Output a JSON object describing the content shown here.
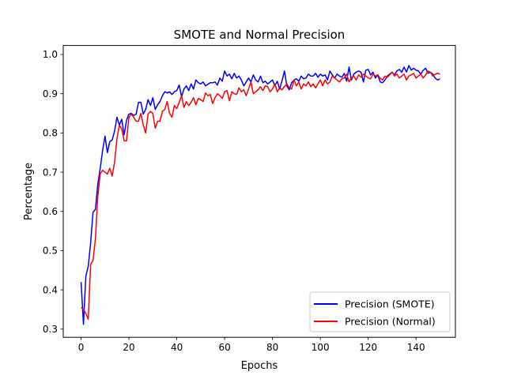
{
  "chart_data": {
    "type": "line",
    "title": "SMOTE and Normal Precision",
    "xlabel": "Epochs",
    "ylabel": "Percentage",
    "xlim": [
      -7.45,
      156.45
    ],
    "ylim": [
      0.279,
      1.023
    ],
    "xticks": [
      0,
      20,
      40,
      60,
      80,
      100,
      120,
      140
    ],
    "yticks": [
      0.3,
      0.4,
      0.5,
      0.6,
      0.7,
      0.8,
      0.9,
      1.0
    ],
    "ytick_labels": [
      "0.3",
      "0.4",
      "0.5",
      "0.6",
      "0.7",
      "0.8",
      "0.9",
      "1.0"
    ],
    "grid": false,
    "legend_position": "lower-right",
    "series": [
      {
        "name": "Precision (SMOTE)",
        "color": "#0000ff",
        "values": [
          0.42,
          0.312,
          0.435,
          0.46,
          0.52,
          0.598,
          0.605,
          0.67,
          0.71,
          0.755,
          0.792,
          0.75,
          0.778,
          0.782,
          0.805,
          0.84,
          0.82,
          0.835,
          0.795,
          0.832,
          0.848,
          0.85,
          0.845,
          0.848,
          0.878,
          0.878,
          0.848,
          0.86,
          0.885,
          0.87,
          0.89,
          0.86,
          0.872,
          0.88,
          0.895,
          0.905,
          0.902,
          0.905,
          0.898,
          0.905,
          0.908,
          0.922,
          0.892,
          0.912,
          0.92,
          0.908,
          0.925,
          0.912,
          0.935,
          0.928,
          0.925,
          0.93,
          0.92,
          0.924,
          0.928,
          0.928,
          0.93,
          0.922,
          0.94,
          0.932,
          0.958,
          0.945,
          0.95,
          0.938,
          0.952,
          0.94,
          0.945,
          0.935,
          0.92,
          0.93,
          0.94,
          0.93,
          0.948,
          0.935,
          0.93,
          0.945,
          0.928,
          0.932,
          0.925,
          0.93,
          0.935,
          0.92,
          0.932,
          0.912,
          0.933,
          0.958,
          0.92,
          0.91,
          0.928,
          0.935,
          0.938,
          0.932,
          0.945,
          0.938,
          0.94,
          0.95,
          0.945,
          0.945,
          0.952,
          0.942,
          0.95,
          0.945,
          0.948,
          0.935,
          0.958,
          0.948,
          0.94,
          0.95,
          0.945,
          0.942,
          0.952,
          0.932,
          0.968,
          0.935,
          0.95,
          0.955,
          0.958,
          0.955,
          0.93,
          0.96,
          0.962,
          0.948,
          0.955,
          0.94,
          0.948,
          0.93,
          0.928,
          0.935,
          0.945,
          0.95,
          0.955,
          0.948,
          0.958,
          0.962,
          0.955,
          0.968,
          0.955,
          0.972,
          0.96,
          0.965,
          0.96,
          0.958,
          0.95,
          0.96,
          0.965,
          0.952,
          0.955,
          0.95,
          0.94,
          0.935,
          0.938
        ]
      },
      {
        "name": "Precision (Normal)",
        "color": "#ff0000",
        "values": [
          0.355,
          0.35,
          0.34,
          0.325,
          0.465,
          0.475,
          0.53,
          0.64,
          0.695,
          0.705,
          0.7,
          0.695,
          0.71,
          0.69,
          0.725,
          0.785,
          0.82,
          0.81,
          0.78,
          0.78,
          0.84,
          0.848,
          0.84,
          0.83,
          0.83,
          0.85,
          0.82,
          0.8,
          0.848,
          0.855,
          0.85,
          0.812,
          0.83,
          0.83,
          0.855,
          0.86,
          0.88,
          0.85,
          0.84,
          0.87,
          0.862,
          0.878,
          0.895,
          0.865,
          0.88,
          0.87,
          0.878,
          0.89,
          0.872,
          0.888,
          0.885,
          0.88,
          0.902,
          0.895,
          0.898,
          0.875,
          0.89,
          0.9,
          0.895,
          0.888,
          0.905,
          0.908,
          0.882,
          0.905,
          0.9,
          0.898,
          0.915,
          0.905,
          0.91,
          0.895,
          0.912,
          0.93,
          0.9,
          0.905,
          0.91,
          0.918,
          0.908,
          0.92,
          0.918,
          0.905,
          0.912,
          0.925,
          0.905,
          0.915,
          0.91,
          0.918,
          0.925,
          0.915,
          0.912,
          0.935,
          0.92,
          0.93,
          0.912,
          0.925,
          0.92,
          0.93,
          0.918,
          0.925,
          0.915,
          0.925,
          0.935,
          0.92,
          0.935,
          0.925,
          0.93,
          0.945,
          0.94,
          0.935,
          0.93,
          0.938,
          0.94,
          0.95,
          0.93,
          0.94,
          0.945,
          0.935,
          0.948,
          0.942,
          0.95,
          0.945,
          0.94,
          0.938,
          0.95,
          0.945,
          0.948,
          0.94,
          0.935,
          0.945,
          0.942,
          0.948,
          0.955,
          0.945,
          0.95,
          0.94,
          0.945,
          0.95,
          0.935,
          0.945,
          0.948,
          0.952,
          0.94,
          0.945,
          0.95,
          0.94,
          0.948,
          0.958,
          0.955,
          0.945,
          0.95,
          0.952,
          0.95
        ]
      }
    ]
  }
}
